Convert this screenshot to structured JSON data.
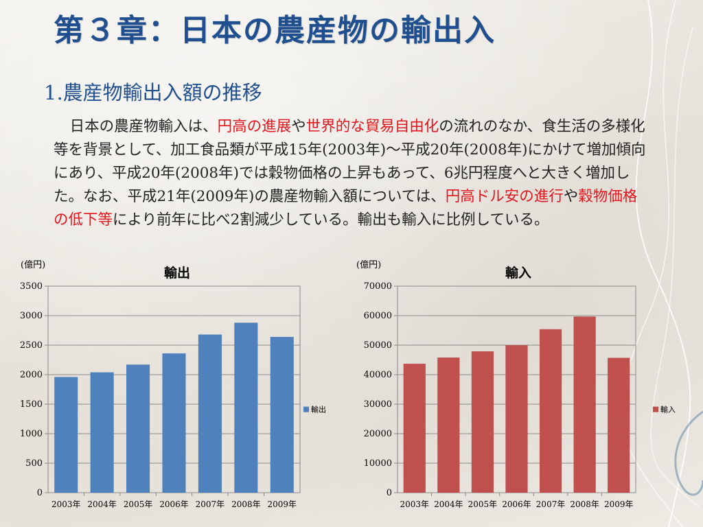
{
  "slide": {
    "title": "第３章：日本の農産物の輸出入",
    "subtitle": "1.農産物輸出入額の推移",
    "paragraph": [
      {
        "text": "日本の農産物輸入は、",
        "highlight": false
      },
      {
        "text": "円高の進展",
        "highlight": true
      },
      {
        "text": "や",
        "highlight": false
      },
      {
        "text": "世界的な貿易自由化",
        "highlight": true
      },
      {
        "text": "の流れのなか、食生活の多様化等を背景として、加工食品類が平成15年(2003年)～平成20年(2008年)にかけて増加傾向にあり、平成20年(2008年)では穀物価格の上昇もあって、6兆円程度へと大きく増加した。なお、平成21年(2009年)の農産物輸入額については、",
        "highlight": false
      },
      {
        "text": "円高ドル安の進行",
        "highlight": true
      },
      {
        "text": "や",
        "highlight": false
      },
      {
        "text": "穀物価格の低下等",
        "highlight": true
      },
      {
        "text": "により前年に比べ2割減少している。輸出も輸入に比例している。",
        "highlight": false
      }
    ],
    "colors": {
      "title": "#1f4f8f",
      "highlight": "#e3141c"
    }
  },
  "chart_data": [
    {
      "type": "bar",
      "title": "輸出",
      "unit_label": "(億円)",
      "categories": [
        "2003年",
        "2004年",
        "2005年",
        "2006年",
        "2007年",
        "2008年",
        "2009年"
      ],
      "series": [
        {
          "name": "輸出",
          "values": [
            1960,
            2040,
            2170,
            2360,
            2680,
            2880,
            2640
          ],
          "color": "#4f81bd"
        }
      ],
      "ylim": [
        0,
        3500
      ],
      "yticks": [
        0,
        500,
        1000,
        1500,
        2000,
        2500,
        3000,
        3500
      ],
      "grid": true,
      "legend": "right"
    },
    {
      "type": "bar",
      "title": "輸入",
      "unit_label": "(億円)",
      "categories": [
        "2003年",
        "2004年",
        "2005年",
        "2006年",
        "2007年",
        "2008年",
        "2009年"
      ],
      "series": [
        {
          "name": "輸入",
          "values": [
            43700,
            45800,
            47900,
            50000,
            55400,
            59700,
            45700
          ],
          "color": "#c0504d"
        }
      ],
      "ylim": [
        0,
        70000
      ],
      "yticks": [
        0,
        10000,
        20000,
        30000,
        40000,
        50000,
        60000,
        70000
      ],
      "grid": true,
      "legend": "right"
    }
  ]
}
